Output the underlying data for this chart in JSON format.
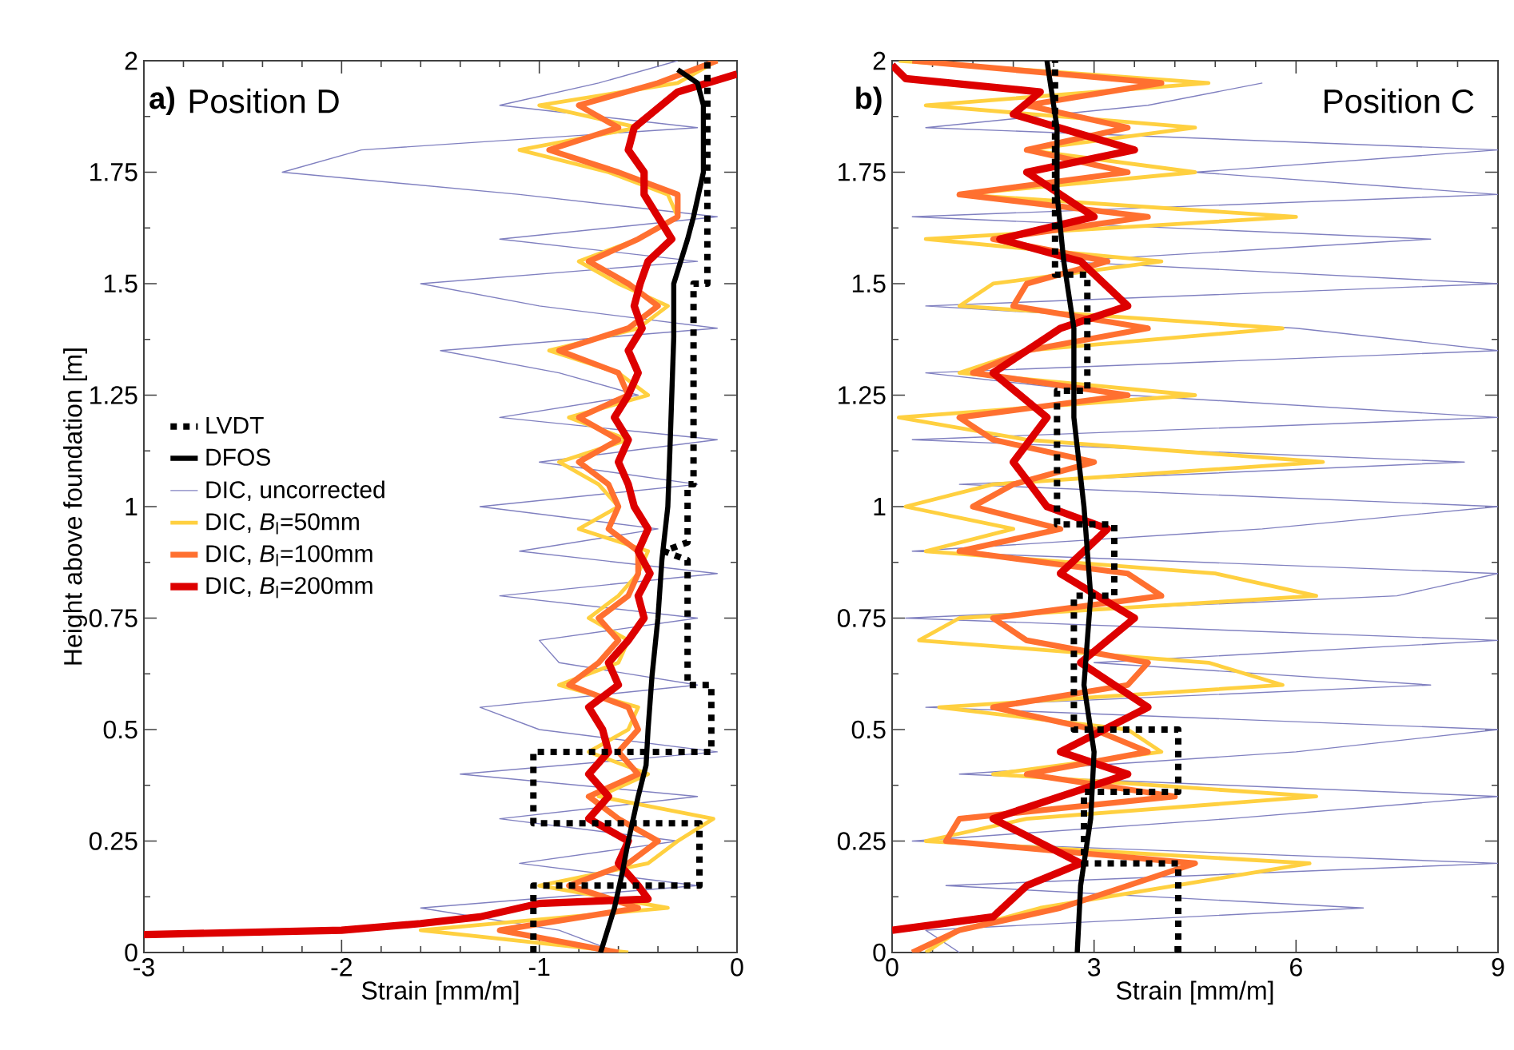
{
  "chart_data": [
    {
      "type": "line",
      "annotations": [
        "a)",
        "Position D"
      ],
      "xlabel": "Strain [mm/m]",
      "ylabel": "Height above foundation [m]",
      "xlim": [
        -3,
        0
      ],
      "ylim": [
        0,
        2
      ],
      "xticks": [
        -3,
        -2,
        -1,
        0
      ],
      "yticks": [
        0,
        0.25,
        0.5,
        0.75,
        1,
        1.25,
        1.5,
        1.75,
        2
      ],
      "legend": "left",
      "series": [
        {
          "name": "LVDT",
          "color": "#000000",
          "line_style": "dotted",
          "x": [
            -1.03,
            -1.03,
            -0.19,
            -0.19,
            -1.03,
            -1.03,
            -0.13,
            -0.13,
            -0.25,
            -0.25,
            -0.37,
            -0.25,
            -0.25,
            -0.22,
            -0.22,
            -0.15,
            -0.15
          ],
          "values": [
            0,
            0.15,
            0.15,
            0.29,
            0.29,
            0.45,
            0.45,
            0.6,
            0.6,
            0.88,
            0.9,
            0.92,
            1.05,
            1.05,
            1.5,
            1.5,
            2.0
          ]
        },
        {
          "name": "DFOS",
          "color": "#000000",
          "line_style": "solid",
          "x": [
            -0.69,
            -0.62,
            -0.58,
            -0.55,
            -0.5,
            -0.46,
            -0.45,
            -0.43,
            -0.4,
            -0.38,
            -0.35,
            -0.34,
            -0.33,
            -0.32,
            -0.32,
            -0.25,
            -0.22,
            -0.17,
            -0.17,
            -0.2,
            -0.3
          ],
          "values": [
            0,
            0.1,
            0.18,
            0.25,
            0.35,
            0.42,
            0.5,
            0.62,
            0.75,
            0.88,
            1.0,
            1.12,
            1.25,
            1.38,
            1.5,
            1.6,
            1.65,
            1.75,
            1.9,
            1.95,
            1.98
          ]
        },
        {
          "name": "DIC, uncorrected",
          "color": "#8080c0",
          "line_style": "solid",
          "x": [
            -0.6,
            -0.9,
            -1.6,
            -0.2,
            -1.1,
            -0.3,
            -1.2,
            -0.2,
            -1.4,
            -0.1,
            -1.0,
            -1.3,
            -0.2,
            -0.9,
            -1.0,
            -0.2,
            -1.2,
            -0.1,
            -1.1,
            -0.4,
            -1.3,
            -0.2,
            -1.0,
            -0.1,
            -1.2,
            -0.5,
            -0.9,
            -1.5,
            -0.1,
            -1.0,
            -1.6,
            -0.2,
            -1.2,
            -0.1,
            -1.1,
            -2.3,
            -1.9,
            -0.2,
            -1.2,
            -0.7,
            -0.3
          ],
          "values": [
            0,
            0.05,
            0.1,
            0.15,
            0.2,
            0.25,
            0.3,
            0.35,
            0.4,
            0.45,
            0.5,
            0.55,
            0.6,
            0.65,
            0.7,
            0.75,
            0.8,
            0.85,
            0.9,
            0.95,
            1.0,
            1.05,
            1.1,
            1.15,
            1.2,
            1.25,
            1.3,
            1.35,
            1.4,
            1.45,
            1.5,
            1.55,
            1.6,
            1.65,
            1.7,
            1.75,
            1.8,
            1.85,
            1.9,
            1.95,
            2.0
          ]
        },
        {
          "name": "DIC, *B*$_{l}$=50mm",
          "color": "#ffd040",
          "line_style": "solid",
          "x": [
            -0.55,
            -1.6,
            -0.35,
            -1.0,
            -0.45,
            -0.3,
            -0.12,
            -0.7,
            -0.45,
            -0.75,
            -0.55,
            -0.5,
            -0.9,
            -0.6,
            -0.55,
            -0.75,
            -0.6,
            -0.5,
            -0.45,
            -0.8,
            -0.6,
            -0.7,
            -0.9,
            -0.55,
            -0.85,
            -0.45,
            -0.6,
            -0.95,
            -0.5,
            -0.35,
            -0.6,
            -0.8,
            -0.5,
            -0.3,
            -0.35,
            -0.65,
            -1.1,
            -0.5,
            -1.0,
            -0.3,
            -0.1
          ],
          "values": [
            0,
            0.05,
            0.1,
            0.15,
            0.2,
            0.25,
            0.3,
            0.35,
            0.4,
            0.45,
            0.5,
            0.55,
            0.6,
            0.65,
            0.7,
            0.75,
            0.8,
            0.85,
            0.9,
            0.95,
            1.0,
            1.05,
            1.1,
            1.15,
            1.2,
            1.25,
            1.3,
            1.35,
            1.4,
            1.45,
            1.5,
            1.55,
            1.6,
            1.65,
            1.7,
            1.75,
            1.8,
            1.85,
            1.9,
            1.95,
            2.0
          ]
        },
        {
          "name": "DIC, *B*$_{l}$=100mm",
          "color": "#ff7030",
          "line_style": "solid",
          "x": [
            -0.6,
            -1.2,
            -0.5,
            -0.85,
            -0.55,
            -0.4,
            -0.6,
            -0.75,
            -0.5,
            -0.6,
            -0.5,
            -0.55,
            -0.85,
            -0.7,
            -0.6,
            -0.7,
            -0.55,
            -0.5,
            -0.5,
            -0.65,
            -0.6,
            -0.65,
            -0.8,
            -0.6,
            -0.8,
            -0.55,
            -0.6,
            -0.9,
            -0.55,
            -0.4,
            -0.55,
            -0.75,
            -0.5,
            -0.3,
            -0.3,
            -0.6,
            -0.95,
            -0.6,
            -0.8,
            -0.4,
            -0.1
          ],
          "values": [
            0,
            0.05,
            0.1,
            0.15,
            0.2,
            0.25,
            0.3,
            0.35,
            0.4,
            0.45,
            0.5,
            0.55,
            0.6,
            0.65,
            0.7,
            0.75,
            0.8,
            0.85,
            0.9,
            0.95,
            1.0,
            1.05,
            1.1,
            1.15,
            1.2,
            1.25,
            1.3,
            1.35,
            1.4,
            1.45,
            1.5,
            1.55,
            1.6,
            1.65,
            1.7,
            1.75,
            1.8,
            1.85,
            1.9,
            1.95,
            2.0
          ]
        },
        {
          "name": "DIC, *B*$_{l}$=200mm",
          "color": "#dd0000",
          "line_style": "solid",
          "x": [
            -3.0,
            -2.0,
            -1.6,
            -1.3,
            -1.0,
            -0.45,
            -0.5,
            -0.6,
            -0.55,
            -0.75,
            -0.65,
            -0.75,
            -0.65,
            -0.68,
            -0.75,
            -0.6,
            -0.65,
            -0.55,
            -0.47,
            -0.5,
            -0.44,
            -0.5,
            -0.45,
            -0.52,
            -0.55,
            -0.6,
            -0.55,
            -0.62,
            -0.55,
            -0.5,
            -0.55,
            -0.48,
            -0.52,
            -0.49,
            -0.45,
            -0.33,
            -0.4,
            -0.47,
            -0.47,
            -0.55,
            -0.52,
            -0.3,
            0.0
          ],
          "values": [
            0.04,
            0.05,
            0.065,
            0.08,
            0.11,
            0.12,
            0.15,
            0.2,
            0.25,
            0.3,
            0.35,
            0.4,
            0.45,
            0.5,
            0.55,
            0.6,
            0.65,
            0.7,
            0.75,
            0.8,
            0.85,
            0.9,
            0.95,
            1.0,
            1.05,
            1.1,
            1.15,
            1.2,
            1.25,
            1.3,
            1.35,
            1.4,
            1.45,
            1.5,
            1.55,
            1.6,
            1.65,
            1.7,
            1.75,
            1.8,
            1.85,
            1.93,
            1.97
          ]
        }
      ]
    },
    {
      "type": "line",
      "annotations": [
        "b)",
        "Position C"
      ],
      "xlabel": "Strain [mm/m]",
      "xlim": [
        0,
        9
      ],
      "ylim": [
        0,
        2
      ],
      "xticks": [
        0,
        3,
        6,
        9
      ],
      "yticks": [
        0,
        0.25,
        0.5,
        0.75,
        1,
        1.25,
        1.5,
        1.75,
        2
      ],
      "series": [
        {
          "color": "#000000",
          "line_style": "dotted",
          "x": [
            4.25,
            4.25,
            2.85,
            2.85,
            4.25,
            4.25,
            2.7,
            2.7,
            3.3,
            3.3,
            2.45,
            2.45,
            2.9,
            2.9,
            2.42,
            2.42
          ],
          "values": [
            0,
            0.2,
            0.2,
            0.36,
            0.36,
            0.5,
            0.5,
            0.8,
            0.8,
            0.96,
            0.96,
            1.26,
            1.26,
            1.52,
            1.52,
            2.0
          ]
        },
        {
          "color": "#000000",
          "line_style": "solid",
          "x": [
            2.75,
            2.8,
            2.95,
            3.0,
            2.85,
            2.95,
            2.85,
            2.7,
            2.7,
            2.55,
            2.45,
            2.45,
            2.3
          ],
          "values": [
            0,
            0.15,
            0.3,
            0.45,
            0.6,
            0.8,
            1.0,
            1.2,
            1.4,
            1.55,
            1.7,
            1.85,
            2.0
          ]
        },
        {
          "color": "#8080c0",
          "line_style": "solid",
          "x": [
            1.0,
            0.5,
            7.0,
            0.8,
            9.0,
            0.3,
            5.0,
            9.0,
            1.0,
            6.0,
            9.0,
            0.5,
            8.0,
            3.0,
            9.0,
            0.2,
            7.5,
            9.0,
            0.3,
            5.5,
            9.0,
            1.0,
            8.5,
            0.3,
            9.0,
            3.5,
            0.5,
            9.0,
            6.0,
            0.5,
            9.0,
            2.5,
            8.0,
            0.3,
            9.0,
            4.5,
            9.0,
            0.5,
            3.8,
            5.5
          ],
          "values": [
            0,
            0.05,
            0.1,
            0.15,
            0.2,
            0.25,
            0.3,
            0.35,
            0.4,
            0.45,
            0.5,
            0.55,
            0.6,
            0.65,
            0.7,
            0.75,
            0.8,
            0.85,
            0.9,
            0.95,
            1.0,
            1.05,
            1.1,
            1.15,
            1.2,
            1.25,
            1.3,
            1.35,
            1.4,
            1.45,
            1.5,
            1.55,
            1.6,
            1.65,
            1.7,
            1.75,
            1.8,
            1.85,
            1.9,
            1.95
          ]
        },
        {
          "color": "#ffd040",
          "line_style": "solid",
          "x": [
            0.5,
            1.0,
            2.2,
            4.2,
            6.2,
            0.5,
            2.0,
            6.3,
            1.5,
            4.0,
            3.5,
            0.7,
            5.8,
            4.7,
            0.4,
            1.0,
            6.3,
            4.8,
            0.5,
            1.8,
            0.2,
            1.5,
            6.4,
            2.0,
            0.1,
            4.5,
            1.0,
            2.0,
            5.8,
            1.0,
            1.5,
            4.0,
            0.5,
            6.0,
            1.0,
            4.5,
            2.0,
            4.5,
            0.5,
            4.7,
            0.1
          ],
          "values": [
            0,
            0.05,
            0.1,
            0.15,
            0.2,
            0.25,
            0.3,
            0.35,
            0.4,
            0.45,
            0.5,
            0.55,
            0.6,
            0.65,
            0.7,
            0.75,
            0.8,
            0.85,
            0.9,
            0.95,
            1.0,
            1.05,
            1.1,
            1.15,
            1.2,
            1.25,
            1.3,
            1.35,
            1.4,
            1.45,
            1.5,
            1.55,
            1.6,
            1.65,
            1.7,
            1.75,
            1.8,
            1.85,
            1.9,
            1.95,
            2.0
          ]
        },
        {
          "color": "#ff7030",
          "line_style": "solid",
          "x": [
            0.3,
            1.0,
            2.5,
            3.5,
            4.5,
            0.8,
            1.0,
            4.2,
            2.0,
            3.8,
            3.0,
            1.5,
            3.5,
            3.8,
            2.0,
            1.5,
            4.0,
            3.5,
            1.0,
            2.5,
            1.2,
            1.8,
            3.0,
            1.5,
            1.0,
            3.5,
            1.2,
            2.0,
            3.8,
            1.8,
            2.0,
            3.2,
            1.5,
            3.8,
            1.0,
            3.5,
            2.0,
            3.5,
            2.0,
            4.0,
            0.3
          ],
          "values": [
            0,
            0.05,
            0.1,
            0.15,
            0.2,
            0.25,
            0.3,
            0.35,
            0.4,
            0.45,
            0.5,
            0.55,
            0.6,
            0.65,
            0.7,
            0.75,
            0.8,
            0.85,
            0.9,
            0.95,
            1.0,
            1.05,
            1.1,
            1.15,
            1.2,
            1.25,
            1.3,
            1.35,
            1.4,
            1.45,
            1.5,
            1.55,
            1.6,
            1.65,
            1.7,
            1.75,
            1.8,
            1.85,
            1.9,
            1.95,
            2.0
          ]
        },
        {
          "color": "#dd0000",
          "line_style": "solid",
          "x": [
            0.0,
            1.5,
            2.0,
            2.8,
            1.5,
            3.5,
            2.5,
            3.8,
            2.8,
            3.6,
            2.5,
            3.2,
            2.3,
            1.8,
            2.3,
            1.5,
            2.5,
            3.5,
            2.8,
            1.6,
            3.0,
            2.0,
            3.6,
            1.8,
            2.2,
            0.2,
            0.0
          ],
          "values": [
            0.05,
            0.08,
            0.15,
            0.2,
            0.3,
            0.4,
            0.45,
            0.55,
            0.65,
            0.75,
            0.85,
            0.95,
            1.0,
            1.1,
            1.2,
            1.3,
            1.4,
            1.45,
            1.55,
            1.6,
            1.65,
            1.75,
            1.8,
            1.88,
            1.93,
            1.96,
            1.99
          ]
        }
      ]
    }
  ]
}
